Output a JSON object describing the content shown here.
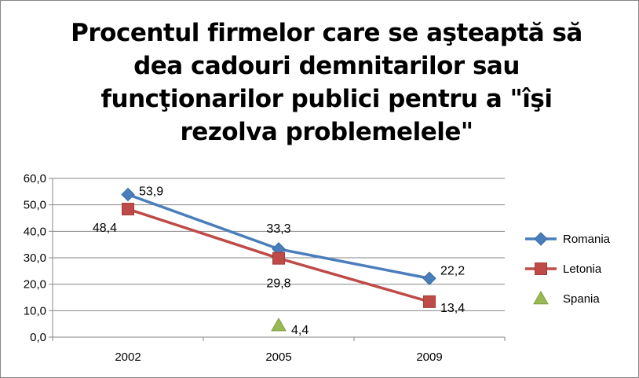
{
  "chart_data": {
    "type": "line",
    "title": "Procentul firmelor care se aşteaptă să dea cadouri demnitarilor sau funcţionarilor publici pentru a \"îşi rezolva problemelele\"",
    "categories": [
      "2002",
      "2005",
      "2009"
    ],
    "y_ticks": [
      "0,0",
      "10,0",
      "20,0",
      "30,0",
      "40,0",
      "50,0",
      "60,0"
    ],
    "ylim": [
      0,
      60
    ],
    "legend_position": "right",
    "series": [
      {
        "name": "Romania",
        "values": [
          53.9,
          33.3,
          22.2
        ],
        "labels": [
          "53,9",
          "33,3",
          "22,2"
        ],
        "color": "#4a7ebb",
        "marker": "diamond",
        "line": true
      },
      {
        "name": "Letonia",
        "values": [
          48.4,
          29.8,
          13.4
        ],
        "labels": [
          "48,4",
          "29,8",
          "13,4"
        ],
        "color": "#be4b48",
        "marker": "square",
        "line": true
      },
      {
        "name": "Spania",
        "values": [
          null,
          4.4,
          null
        ],
        "labels": [
          null,
          "4,4",
          null
        ],
        "color": "#98b954",
        "marker": "triangle",
        "line": false
      }
    ]
  }
}
